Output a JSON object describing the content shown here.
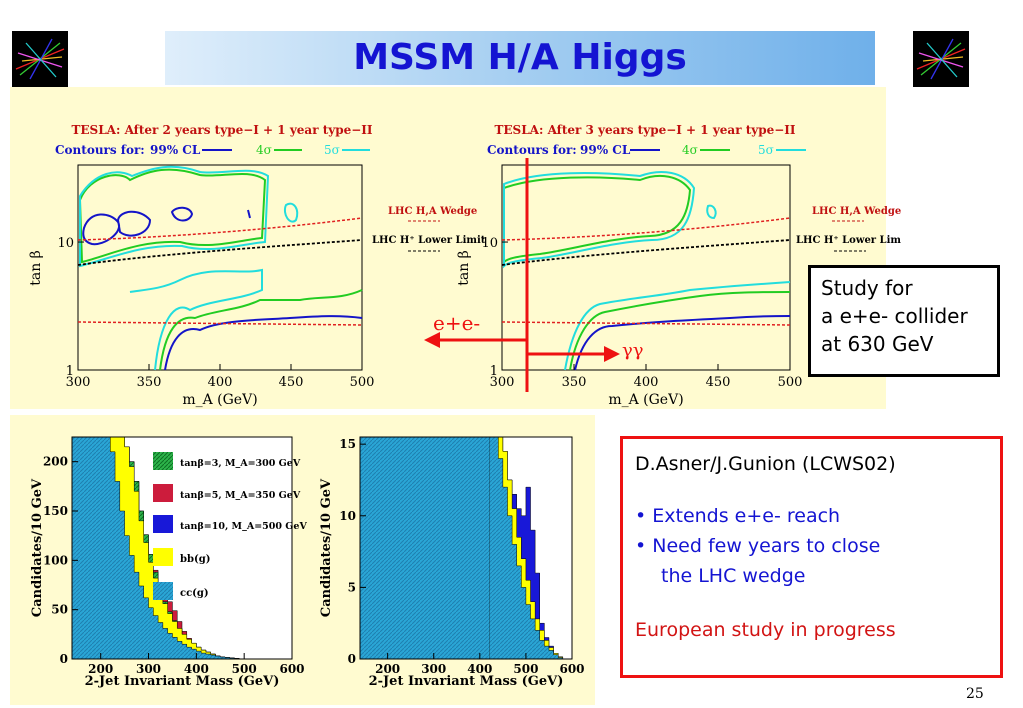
{
  "header": {
    "title": "MSSM H/A Higgs"
  },
  "logos": [
    {
      "icon": "particle-collision-event-icon"
    },
    {
      "icon": "particle-collision-event-icon"
    }
  ],
  "info_box": {
    "lines": [
      "Study for",
      "a e+e- collider",
      "at 630 GeV"
    ]
  },
  "credit_box": {
    "author": "D.Asner/J.Gunion (LCWS02)",
    "bullets": [
      "Extends e+e- reach",
      "Need few years to close",
      "the LHC wedge"
    ],
    "footer": "European study in progress"
  },
  "annotations": {
    "ee_label": "e+e-",
    "gg_label": "γγ"
  },
  "page_number": "25",
  "colors": {
    "title": "#1414d2",
    "panel": "#fffbd0",
    "contour_99": "#1414c8",
    "contour_4s": "#22cc22",
    "contour_5s": "#22dddd",
    "wedge": "#e02020",
    "arrow": "#ee1111"
  },
  "chart_data": [
    {
      "type": "line",
      "title": "TESLA: After 2 years type−I + 1 year type−II",
      "subtitle": "Contours for:",
      "xlabel": "m_A (GeV)",
      "ylabel": "tan β",
      "x_ticks": [
        "300",
        "350",
        "400",
        "450",
        "500"
      ],
      "y_ticks": [
        "1",
        "10"
      ],
      "xlim": [
        300,
        500
      ],
      "ylim": [
        1,
        40
      ],
      "log_y": true,
      "legend": [
        "99% CL",
        "4σ",
        "5σ"
      ],
      "annotations": [
        "LHC H,A Wedge",
        "LHC H⁺ Lower Limit"
      ],
      "series": [
        {
          "name": "LHC H,A Wedge",
          "x": [
            300,
            400,
            500
          ],
          "y": [
            2.6,
            2.55,
            2.5
          ]
        },
        {
          "name": "LHC H,A Wedge",
          "x": [
            300,
            400,
            500
          ],
          "y": [
            8.8,
            12.0,
            16.0
          ]
        },
        {
          "name": "LHC H⁺ Lower Limit",
          "x": [
            300,
            400,
            500
          ],
          "y": [
            7.0,
            9.0,
            11.5
          ]
        }
      ]
    },
    {
      "type": "line",
      "title": "TESLA: After 3 years type−I + 1 year type−II",
      "subtitle": "Contours for:",
      "xlabel": "m_A (GeV)",
      "ylabel": "tan β",
      "x_ticks": [
        "300",
        "350",
        "400",
        "450",
        "500"
      ],
      "y_ticks": [
        "1",
        "10"
      ],
      "xlim": [
        300,
        500
      ],
      "ylim": [
        1,
        40
      ],
      "log_y": true,
      "legend": [
        "99% CL",
        "4σ",
        "5σ"
      ],
      "annotations": [
        "LHC H,A Wedge",
        "LHC H⁺ Lower Lim"
      ],
      "series": [
        {
          "name": "LHC H,A Wedge",
          "x": [
            300,
            400,
            500
          ],
          "y": [
            2.6,
            2.55,
            2.5
          ]
        },
        {
          "name": "LHC H,A Wedge",
          "x": [
            300,
            400,
            500
          ],
          "y": [
            8.8,
            12.0,
            16.0
          ]
        },
        {
          "name": "LHC H⁺ Lower Lim",
          "x": [
            300,
            400,
            500
          ],
          "y": [
            7.0,
            9.0,
            11.5
          ]
        }
      ]
    },
    {
      "type": "area",
      "xlabel": "2-Jet Invariant Mass (GeV)",
      "ylabel": "Candidates/10 GeV",
      "x_ticks": [
        "200",
        "300",
        "400",
        "500",
        "600"
      ],
      "y_ticks": [
        "0",
        "50",
        "100",
        "150",
        "200"
      ],
      "xlim": [
        140,
        600
      ],
      "ylim": [
        0,
        225
      ],
      "legend": [
        "tanβ=3, M_A=300 GeV",
        "tanβ=5, M_A=350 GeV",
        "tanβ=10, M_A=500 GeV",
        "bb(g)",
        "cc(g)"
      ],
      "x": [
        150,
        160,
        170,
        180,
        190,
        200,
        210,
        220,
        230,
        240,
        250,
        260,
        270,
        280,
        290,
        300,
        310,
        320,
        330,
        340,
        350,
        360,
        370,
        380,
        390,
        400,
        410,
        420,
        430,
        440,
        450,
        460,
        470,
        480,
        490,
        500,
        510,
        520
      ],
      "series": [
        {
          "name": "cc(g)",
          "values": [
            225,
            225,
            225,
            225,
            225,
            225,
            225,
            210,
            180,
            150,
            125,
            105,
            88,
            74,
            62,
            52,
            44,
            37,
            31,
            26,
            22,
            18,
            15,
            12,
            10,
            8,
            6,
            5,
            4,
            3,
            2,
            1.5,
            1,
            0.5,
            0,
            0,
            0,
            0
          ]
        },
        {
          "name": "bb(g)",
          "values": [
            225,
            225,
            225,
            225,
            225,
            225,
            225,
            225,
            225,
            225,
            215,
            195,
            170,
            140,
            118,
            98,
            82,
            68,
            56,
            46,
            38,
            31,
            25,
            20,
            16,
            12,
            9,
            7,
            5,
            3,
            2,
            1.5,
            1,
            0.5,
            0,
            0,
            0,
            0
          ]
        },
        {
          "name": "tanβ=3, M_A=300 GeV",
          "values": [
            225,
            225,
            225,
            225,
            225,
            225,
            225,
            225,
            225,
            225,
            215,
            200,
            180,
            150,
            126,
            106,
            88,
            72,
            58,
            48,
            39,
            31,
            25,
            20,
            16,
            12,
            9,
            7,
            5,
            3,
            2,
            1.5,
            1,
            0.5,
            0,
            0,
            0,
            0
          ]
        },
        {
          "name": "tanβ=5, M_A=350 GeV",
          "values": [
            225,
            225,
            225,
            225,
            225,
            225,
            225,
            225,
            225,
            225,
            215,
            200,
            180,
            150,
            126,
            106,
            90,
            76,
            66,
            58,
            49,
            38,
            28,
            21,
            16,
            12,
            9,
            7,
            5,
            3,
            2,
            1.5,
            1,
            0.5,
            0,
            0,
            0,
            0
          ]
        }
      ]
    },
    {
      "type": "area",
      "xlabel": "2-Jet Invariant Mass (GeV)",
      "ylabel": "Candidates/10 GeV",
      "x_ticks": [
        "200",
        "300",
        "400",
        "500",
        "600"
      ],
      "y_ticks": [
        "0",
        "5",
        "10",
        "15"
      ],
      "xlim": [
        140,
        600
      ],
      "ylim": [
        0,
        15.5
      ],
      "x": [
        430,
        440,
        450,
        460,
        470,
        480,
        490,
        500,
        510,
        520,
        530,
        540,
        550,
        560,
        570,
        580
      ],
      "series": [
        {
          "name": "cc(g)",
          "values": [
            15.5,
            14,
            12,
            10,
            8,
            6.5,
            5,
            3.8,
            2.8,
            2,
            1.3,
            0.9,
            0.6,
            0.3,
            0.1,
            0
          ]
        },
        {
          "name": "bb(g)",
          "values": [
            15.5,
            15.5,
            14.5,
            12.5,
            10.5,
            8.5,
            7,
            5.5,
            4,
            2.8,
            2,
            1.3,
            0.8,
            0.4,
            0.15,
            0
          ]
        },
        {
          "name": "tanβ=10, M_A=500 GeV",
          "values": [
            15.5,
            15.5,
            14.5,
            12.5,
            11.5,
            10.5,
            10,
            12,
            9,
            6,
            2.5,
            1.5,
            0.9,
            0.4,
            0.15,
            0
          ]
        }
      ]
    }
  ]
}
